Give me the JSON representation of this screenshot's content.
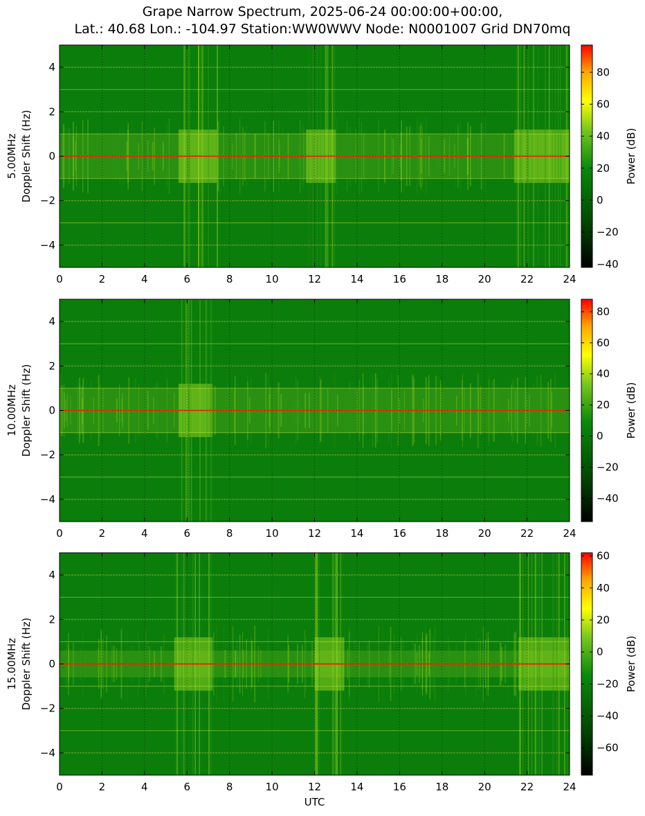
{
  "chart_data": [
    {
      "type": "heatmap",
      "title": "Grape Narrow Spectrum, 2025-06-24 00:00:00+00:00, Lat.: 40.68 Lon.: -104.97 Station:WW0WWV Node: N0001007 Grid DN70mq",
      "ylabel_freq": "5.00MHz",
      "ylabel": "Doppler Shift (Hz)",
      "xlabel": "",
      "xlim": [
        0,
        24
      ],
      "ylim": [
        -5,
        5
      ],
      "x_ticks": [
        0,
        2,
        4,
        6,
        8,
        10,
        12,
        14,
        16,
        18,
        20,
        22,
        24
      ],
      "y_ticks": [
        -4,
        -2,
        0,
        2,
        4
      ],
      "colorbar": {
        "label": "Power (dB)",
        "range": [
          -42,
          97
        ],
        "ticks": [
          -40,
          -20,
          0,
          20,
          40,
          60,
          80
        ]
      },
      "grid": true,
      "carrier_hz": 0,
      "activity_bands_utc": [
        [
          5.6,
          7.4
        ],
        [
          11.6,
          13.0
        ],
        [
          21.4,
          24
        ]
      ]
    },
    {
      "type": "heatmap",
      "ylabel_freq": "10.00MHz",
      "ylabel": "Doppler Shift (Hz)",
      "xlabel": "",
      "xlim": [
        0,
        24
      ],
      "ylim": [
        -5,
        5
      ],
      "x_ticks": [
        0,
        2,
        4,
        6,
        8,
        10,
        12,
        14,
        16,
        18,
        20,
        22,
        24
      ],
      "y_ticks": [
        -4,
        -2,
        0,
        2,
        4
      ],
      "colorbar": {
        "label": "Power (dB)",
        "range": [
          -55,
          88
        ],
        "ticks": [
          -40,
          -20,
          0,
          20,
          40,
          60,
          80
        ]
      },
      "grid": true,
      "carrier_hz": 0,
      "activity_bands_utc": [
        [
          5.6,
          7.2
        ],
        [
          0,
          24
        ]
      ]
    },
    {
      "type": "heatmap",
      "ylabel_freq": "15.00MHz",
      "ylabel": "Doppler Shift (Hz)",
      "xlabel": "UTC",
      "xlim": [
        0,
        24
      ],
      "ylim": [
        -5,
        5
      ],
      "x_ticks": [
        0,
        2,
        4,
        6,
        8,
        10,
        12,
        14,
        16,
        18,
        20,
        22,
        24
      ],
      "y_ticks": [
        -4,
        -2,
        0,
        2,
        4
      ],
      "colorbar": {
        "label": "Power (dB)",
        "range": [
          -77,
          62
        ],
        "ticks": [
          -60,
          -40,
          -20,
          0,
          20,
          40,
          60
        ]
      },
      "grid": true,
      "carrier_hz": 0,
      "activity_bands_utc": [
        [
          5.4,
          7.2
        ],
        [
          12.0,
          13.4
        ],
        [
          21.6,
          24
        ]
      ]
    }
  ],
  "header": {
    "title_line1": "Grape Narrow Spectrum, 2025-06-24 00:00:00+00:00,",
    "title_line2": "Lat.: 40.68 Lon.: -104.97 Station:WW0WWV Node: N0001007 Grid DN70mq"
  },
  "colors": {
    "background_green": "#0a7a0a",
    "bright_green": "#6fcf1a",
    "yellow": "#ffff00",
    "orange": "#ffa500",
    "red": "#ff0000",
    "black": "#000000"
  }
}
